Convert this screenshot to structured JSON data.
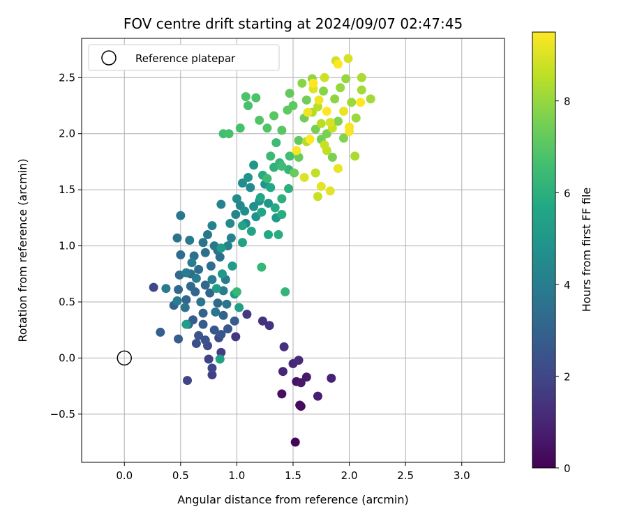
{
  "chart_data": {
    "type": "scatter",
    "title": "FOV centre drift starting at 2024/09/07 02:47:45",
    "xlabel": "Angular distance from reference (arcmin)",
    "ylabel": "Rotation from reference (arcmin)",
    "xlim": [
      -0.38,
      3.38
    ],
    "ylim": [
      -0.93,
      2.85
    ],
    "xticks": [
      0.0,
      0.5,
      1.0,
      1.5,
      2.0,
      2.5,
      3.0
    ],
    "xtick_labels": [
      "0.0",
      "0.5",
      "1.0",
      "1.5",
      "2.0",
      "2.5",
      "3.0"
    ],
    "yticks": [
      -0.5,
      0.0,
      0.5,
      1.0,
      1.5,
      2.0,
      2.5
    ],
    "ytick_labels": [
      "−0.5",
      "0.0",
      "0.5",
      "1.0",
      "1.5",
      "2.0",
      "2.5"
    ],
    "grid": true,
    "legend": {
      "position": "top-left",
      "entries": [
        "Reference platepar"
      ]
    },
    "reference_point": {
      "x": 0.0,
      "y": 0.0
    },
    "colorbar": {
      "label": "Hours from first FF file",
      "range": [
        0,
        9.5
      ],
      "ticks": [
        0,
        2,
        4,
        6,
        8
      ],
      "tick_labels": [
        "0",
        "2",
        "4",
        "6",
        "8"
      ],
      "colormap": "viridis"
    },
    "points": [
      [
        1.52,
        -0.75,
        0.1
      ],
      [
        1.57,
        -0.43,
        0.2
      ],
      [
        1.56,
        -0.42,
        0.3
      ],
      [
        1.4,
        -0.32,
        0.4
      ],
      [
        1.53,
        -0.21,
        0.5
      ],
      [
        1.57,
        -0.22,
        0.6
      ],
      [
        1.62,
        -0.17,
        0.7
      ],
      [
        1.72,
        -0.34,
        0.8
      ],
      [
        1.84,
        -0.18,
        0.9
      ],
      [
        1.41,
        -0.12,
        1.0
      ],
      [
        1.5,
        -0.05,
        1.1
      ],
      [
        1.55,
        -0.02,
        1.2
      ],
      [
        1.42,
        0.1,
        1.3
      ],
      [
        1.23,
        0.33,
        1.35
      ],
      [
        1.29,
        0.29,
        1.4
      ],
      [
        0.99,
        0.19,
        1.5
      ],
      [
        1.09,
        0.39,
        1.6
      ],
      [
        0.86,
        0.05,
        1.7
      ],
      [
        0.78,
        -0.15,
        1.8
      ],
      [
        0.75,
        -0.01,
        1.85
      ],
      [
        0.56,
        -0.2,
        1.9
      ],
      [
        0.26,
        0.63,
        2.0
      ],
      [
        0.78,
        -0.09,
        2.0
      ],
      [
        0.84,
        0.18,
        2.1
      ],
      [
        0.74,
        0.11,
        2.2
      ],
      [
        0.64,
        0.13,
        2.3
      ],
      [
        0.72,
        0.16,
        2.4
      ],
      [
        0.86,
        0.21,
        2.5
      ],
      [
        0.66,
        0.2,
        2.5
      ],
      [
        0.8,
        0.25,
        2.6
      ],
      [
        0.92,
        0.26,
        2.6
      ],
      [
        0.7,
        0.3,
        2.7
      ],
      [
        0.61,
        0.34,
        2.7
      ],
      [
        0.98,
        0.33,
        2.8
      ],
      [
        0.48,
        0.17,
        2.8
      ],
      [
        0.32,
        0.23,
        2.9
      ],
      [
        0.57,
        0.3,
        2.9
      ],
      [
        0.7,
        0.4,
        3.0
      ],
      [
        0.88,
        0.38,
        3.0
      ],
      [
        0.44,
        0.47,
        3.0
      ],
      [
        0.55,
        0.52,
        3.1
      ],
      [
        0.63,
        0.59,
        3.1
      ],
      [
        0.76,
        0.58,
        3.1
      ],
      [
        0.48,
        0.61,
        3.2
      ],
      [
        0.59,
        0.64,
        3.2
      ],
      [
        0.72,
        0.65,
        3.2
      ],
      [
        0.83,
        0.49,
        3.3
      ],
      [
        0.49,
        0.74,
        3.3
      ],
      [
        0.59,
        0.75,
        3.3
      ],
      [
        0.66,
        0.79,
        3.4
      ],
      [
        0.77,
        0.82,
        3.4
      ],
      [
        0.5,
        0.92,
        3.4
      ],
      [
        0.62,
        0.91,
        3.5
      ],
      [
        0.72,
        0.94,
        3.5
      ],
      [
        0.85,
        0.9,
        3.5
      ],
      [
        0.47,
        1.07,
        3.6
      ],
      [
        0.7,
        1.03,
        3.6
      ],
      [
        0.83,
        0.96,
        3.6
      ],
      [
        0.54,
        0.45,
        3.6
      ],
      [
        0.68,
        0.5,
        3.7
      ],
      [
        0.81,
        0.41,
        3.7
      ],
      [
        0.91,
        0.48,
        3.7
      ],
      [
        0.5,
        1.27,
        3.8
      ],
      [
        0.58,
        1.05,
        3.8
      ],
      [
        0.74,
        1.1,
        3.8
      ],
      [
        0.8,
        1.0,
        3.8
      ],
      [
        0.9,
        0.7,
        3.9
      ],
      [
        0.64,
        0.71,
        3.9
      ],
      [
        0.55,
        0.76,
        3.9
      ],
      [
        0.37,
        0.62,
        3.9
      ],
      [
        0.47,
        0.51,
        4.0
      ],
      [
        0.6,
        0.85,
        4.0
      ],
      [
        0.78,
        0.7,
        4.0
      ],
      [
        0.88,
        0.6,
        4.0
      ],
      [
        0.92,
        1.0,
        4.1
      ],
      [
        0.86,
        1.37,
        4.2
      ],
      [
        0.95,
        1.07,
        4.2
      ],
      [
        0.78,
        1.18,
        4.2
      ],
      [
        0.99,
        1.28,
        4.3
      ],
      [
        1.03,
        1.36,
        4.4
      ],
      [
        1.08,
        1.2,
        4.4
      ],
      [
        1.12,
        1.52,
        4.5
      ],
      [
        0.94,
        1.2,
        4.5
      ],
      [
        1.0,
        1.42,
        4.6
      ],
      [
        1.05,
        1.56,
        4.6
      ],
      [
        1.15,
        1.35,
        4.7
      ],
      [
        1.07,
        1.31,
        4.7
      ],
      [
        1.2,
        1.4,
        4.8
      ],
      [
        1.17,
        1.26,
        4.8
      ],
      [
        1.1,
        1.61,
        4.9
      ],
      [
        1.25,
        1.55,
        4.9
      ],
      [
        1.15,
        1.72,
        5.0
      ],
      [
        1.28,
        1.38,
        5.0
      ],
      [
        1.35,
        1.25,
        5.1
      ],
      [
        0.98,
        0.57,
        5.1
      ],
      [
        0.87,
        0.75,
        5.1
      ],
      [
        0.96,
        0.82,
        5.2
      ],
      [
        0.86,
        0.98,
        5.2
      ],
      [
        1.02,
        0.45,
        5.3
      ],
      [
        0.82,
        0.62,
        5.3
      ],
      [
        0.55,
        0.3,
        5.3
      ],
      [
        1.05,
        1.03,
        5.4
      ],
      [
        0.85,
        -0.01,
        5.4
      ],
      [
        1.05,
        1.18,
        5.5
      ],
      [
        1.13,
        1.13,
        5.5
      ],
      [
        1.22,
        1.3,
        5.6
      ],
      [
        1.21,
        1.43,
        5.6
      ],
      [
        1.28,
        1.1,
        5.7
      ],
      [
        1.3,
        1.52,
        5.7
      ],
      [
        1.23,
        1.63,
        5.8
      ],
      [
        1.34,
        1.34,
        5.8
      ],
      [
        1.4,
        1.28,
        5.9
      ],
      [
        1.37,
        1.1,
        5.9
      ],
      [
        1.4,
        1.42,
        6.0
      ],
      [
        1.46,
        1.51,
        6.0
      ],
      [
        1.33,
        1.7,
        6.1
      ],
      [
        1.38,
        1.74,
        6.2
      ],
      [
        1.46,
        1.68,
        6.2
      ],
      [
        1.43,
        0.59,
        6.2
      ],
      [
        1.0,
        0.59,
        6.3
      ],
      [
        1.22,
        0.81,
        6.3
      ],
      [
        1.27,
        1.6,
        6.4
      ],
      [
        1.3,
        1.8,
        6.4
      ],
      [
        1.35,
        1.92,
        6.5
      ],
      [
        1.4,
        1.71,
        6.5
      ],
      [
        1.47,
        1.8,
        6.6
      ],
      [
        0.88,
        2.0,
        6.6
      ],
      [
        0.93,
        2.0,
        6.7
      ],
      [
        1.03,
        2.05,
        6.7
      ],
      [
        1.1,
        2.25,
        6.7
      ],
      [
        1.08,
        2.33,
        6.8
      ],
      [
        1.17,
        2.32,
        6.8
      ],
      [
        1.2,
        2.12,
        6.9
      ],
      [
        1.27,
        2.05,
        6.9
      ],
      [
        1.33,
        2.16,
        7.0
      ],
      [
        1.4,
        2.03,
        7.0
      ],
      [
        1.45,
        2.21,
        7.1
      ],
      [
        1.5,
        2.25,
        7.1
      ],
      [
        1.47,
        2.36,
        7.2
      ],
      [
        1.55,
        1.94,
        7.2
      ],
      [
        1.51,
        1.65,
        7.3
      ],
      [
        1.55,
        1.79,
        7.3
      ],
      [
        1.6,
        2.14,
        7.4
      ],
      [
        1.62,
        2.3,
        7.4
      ],
      [
        1.7,
        2.04,
        7.5
      ],
      [
        1.75,
        1.95,
        7.5
      ],
      [
        1.8,
        2.0,
        7.6
      ],
      [
        1.85,
        1.79,
        7.6
      ],
      [
        1.9,
        2.11,
        7.7
      ],
      [
        1.95,
        1.96,
        7.7
      ],
      [
        1.77,
        2.38,
        7.8
      ],
      [
        1.58,
        2.45,
        7.8
      ],
      [
        1.67,
        2.49,
        7.9
      ],
      [
        1.87,
        2.31,
        7.9
      ],
      [
        1.92,
        2.41,
        8.0
      ],
      [
        1.97,
        2.49,
        8.0
      ],
      [
        2.02,
        2.28,
        8.1
      ],
      [
        2.06,
        2.14,
        8.1
      ],
      [
        2.11,
        2.39,
        8.2
      ],
      [
        2.19,
        2.31,
        8.2
      ],
      [
        2.11,
        2.5,
        8.3
      ],
      [
        2.05,
        1.8,
        8.3
      ],
      [
        1.62,
        1.93,
        8.4
      ],
      [
        1.67,
        2.19,
        8.4
      ],
      [
        1.72,
        2.24,
        8.5
      ],
      [
        1.75,
        2.09,
        8.5
      ],
      [
        1.8,
        1.85,
        8.6
      ],
      [
        1.7,
        1.65,
        8.6
      ],
      [
        1.78,
        1.9,
        8.7
      ],
      [
        1.85,
        2.05,
        8.7
      ],
      [
        1.72,
        1.44,
        8.7
      ],
      [
        1.78,
        2.5,
        8.8
      ],
      [
        1.88,
        2.65,
        8.8
      ],
      [
        1.99,
        2.67,
        8.9
      ],
      [
        1.83,
        2.1,
        8.9
      ],
      [
        1.68,
        2.4,
        9.0
      ],
      [
        1.6,
        1.61,
        9.0
      ],
      [
        1.75,
        1.53,
        9.1
      ],
      [
        1.83,
        1.49,
        9.1
      ],
      [
        1.9,
        1.69,
        9.2
      ],
      [
        1.95,
        2.2,
        9.2
      ],
      [
        1.63,
        2.19,
        9.3
      ],
      [
        1.73,
        2.3,
        9.3
      ],
      [
        2.0,
        2.02,
        9.4
      ],
      [
        2.0,
        2.06,
        9.4
      ],
      [
        1.53,
        1.85,
        9.4
      ],
      [
        1.68,
        2.45,
        9.5
      ],
      [
        2.1,
        2.28,
        9.5
      ],
      [
        1.8,
        2.2,
        9.5
      ],
      [
        1.65,
        1.95,
        9.5
      ],
      [
        1.9,
        2.62,
        9.5
      ]
    ]
  }
}
